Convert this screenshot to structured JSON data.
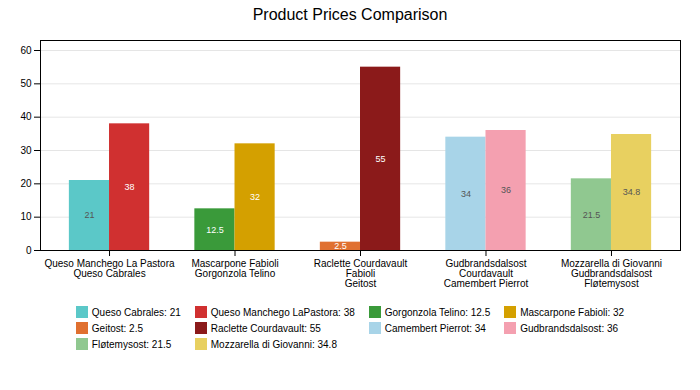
{
  "chart_data": {
    "type": "bar",
    "title": "Product Prices Comparison",
    "categories": [
      "Queso Manchego La Pastora\nQueso Cabrales",
      "Mascarpone Fabioli\nGorgonzola Telino",
      "Raclette Courdavault\nFabioli\nGeitost",
      "Gudbrandsdalsost\nCourdavault\nCamembert Pierrot",
      "Mozzarella di Giovanni\nGudbrandsdalsost\nFløtemysost"
    ],
    "series": [
      {
        "name": "Queso Cabrales: 21",
        "color": "#5BC8C8",
        "values": [
          21,
          null,
          null,
          null,
          null
        ]
      },
      {
        "name": "Queso Manchego LaPastora: 38",
        "color": "#D03030",
        "values": [
          38,
          null,
          null,
          null,
          null
        ]
      },
      {
        "name": "Gorgonzola Telino: 12.5",
        "color": "#3A9A3A",
        "values": [
          null,
          12.5,
          null,
          null,
          null
        ]
      },
      {
        "name": "Mascarpone Fabioli: 32",
        "color": "#D4A000",
        "values": [
          null,
          32,
          null,
          null,
          null
        ]
      },
      {
        "name": "Geitost: 2.5",
        "color": "#E07030",
        "values": [
          null,
          null,
          2.5,
          null,
          null
        ]
      },
      {
        "name": "Raclette Courdavault: 55",
        "color": "#8B1A1A",
        "values": [
          null,
          null,
          55,
          null,
          null
        ]
      },
      {
        "name": "Camembert Pierrot: 34",
        "color": "#A8D4E8",
        "values": [
          null,
          null,
          null,
          34,
          null
        ]
      },
      {
        "name": "Gudbrandsdalsost: 36",
        "color": "#F4A0B0",
        "values": [
          null,
          null,
          null,
          36,
          null
        ]
      },
      {
        "name": "Fløtemysost: 21.5",
        "color": "#90C890",
        "values": [
          null,
          null,
          null,
          null,
          21.5
        ]
      },
      {
        "name": "Mozzarella di Giovanni: 34.8",
        "color": "#E8D060",
        "values": [
          null,
          null,
          null,
          null,
          34.8
        ]
      }
    ],
    "ylim": [
      0,
      63
    ],
    "yticks": [
      0,
      10,
      20,
      30,
      40,
      50,
      60
    ],
    "grid": true,
    "data_labels": true,
    "legend": "bottom"
  }
}
